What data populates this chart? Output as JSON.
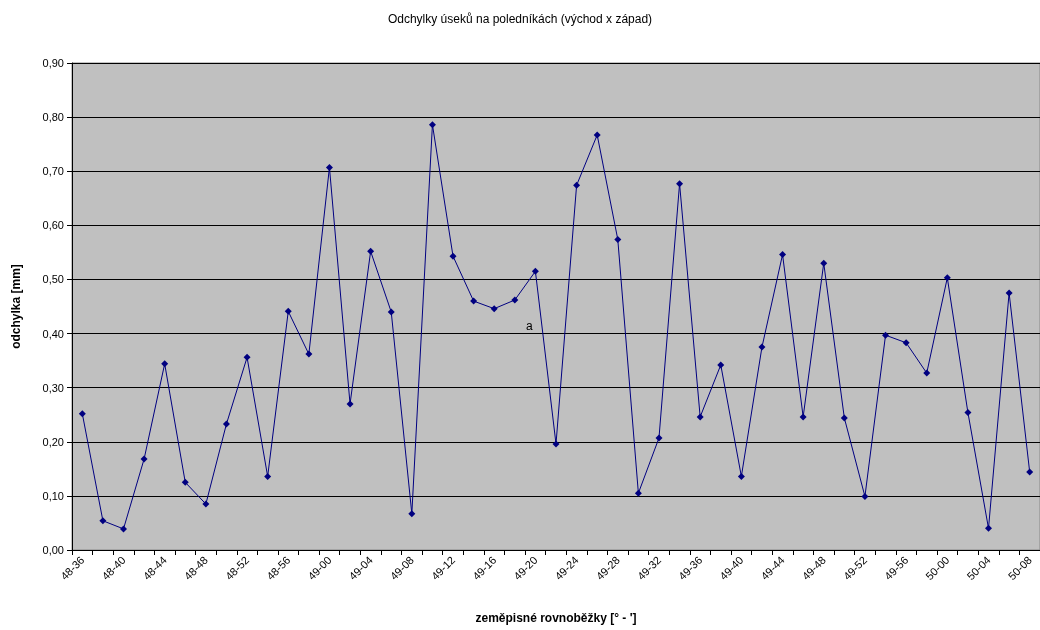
{
  "chart_data": {
    "type": "line",
    "title": "Odchylky úseků na poledníkách (východ x západ)",
    "xlabel": "zeměpisné rovnoběžky [° - ']",
    "ylabel": "odchylka [mm]",
    "categories": [
      "48-36",
      null,
      "48-40",
      null,
      "48-44",
      null,
      "48-48",
      null,
      "48-52",
      null,
      "48-56",
      null,
      "49-00",
      null,
      "49-04",
      null,
      "49-08",
      null,
      "49-12",
      null,
      "49-16",
      null,
      "49-20",
      null,
      "49-24",
      null,
      "49-28",
      null,
      "49-32",
      null,
      "49-36",
      null,
      "49-40",
      null,
      "49-44",
      null,
      "49-48",
      null,
      "49-52",
      null,
      "49-56",
      null,
      "50-00",
      null,
      "50-04",
      null,
      "50-08"
    ],
    "series": [
      {
        "color": "#000080",
        "values": [
          0.252,
          0.054,
          0.039,
          0.168,
          0.344,
          0.125,
          0.085,
          0.233,
          0.356,
          0.136,
          0.441,
          0.362,
          0.707,
          0.27,
          0.552,
          0.44,
          0.067,
          0.786,
          0.543,
          0.46,
          0.446,
          0.462,
          0.515,
          0.196,
          0.674,
          0.767,
          0.574,
          0.105,
          0.207,
          0.677,
          0.246,
          0.342,
          0.136,
          0.375,
          0.546,
          0.246,
          0.53,
          0.244,
          0.099,
          0.397,
          0.383,
          0.327,
          0.503,
          0.254,
          0.04,
          0.475,
          0.144
        ]
      }
    ],
    "ylim": [
      0,
      0.9
    ],
    "yticks": [
      {
        "value": 0,
        "label": "0,00"
      },
      {
        "value": 0.1,
        "label": "0,10"
      },
      {
        "value": 0.2,
        "label": "0,20"
      },
      {
        "value": 0.3,
        "label": "0,30"
      },
      {
        "value": 0.4,
        "label": "0,40"
      },
      {
        "value": 0.5,
        "label": "0,50"
      },
      {
        "value": 0.6,
        "label": "0,60"
      },
      {
        "value": 0.7,
        "label": "0,70"
      },
      {
        "value": 0.8,
        "label": "0,80"
      },
      {
        "value": 0.9,
        "label": "0,90"
      }
    ],
    "annotations": [
      "a"
    ],
    "grid": "y",
    "marker": "diamond",
    "line_style": "solid"
  }
}
